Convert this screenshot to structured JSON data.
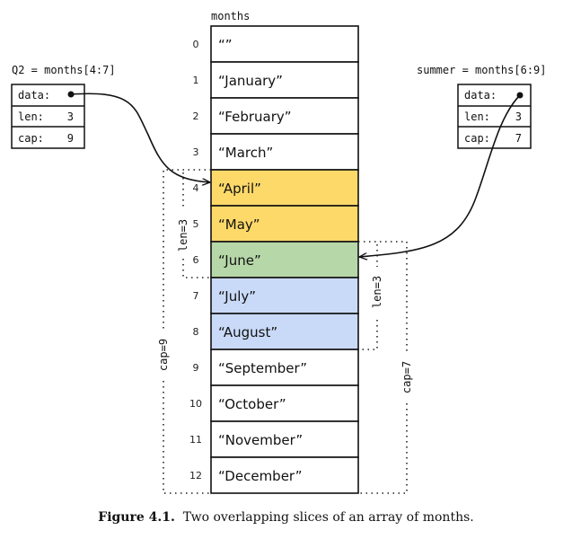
{
  "array": {
    "label": "months",
    "cells": [
      {
        "index": "0",
        "value": "“”",
        "color": "#ffffff"
      },
      {
        "index": "1",
        "value": "“January”",
        "color": "#ffffff"
      },
      {
        "index": "2",
        "value": "“February”",
        "color": "#ffffff"
      },
      {
        "index": "3",
        "value": "“March”",
        "color": "#ffffff"
      },
      {
        "index": "4",
        "value": "“April”",
        "color": "#fdd96a"
      },
      {
        "index": "5",
        "value": "“May”",
        "color": "#fdd96a"
      },
      {
        "index": "6",
        "value": "“June”",
        "color": "#b6d7a8"
      },
      {
        "index": "7",
        "value": "“July”",
        "color": "#c9daf8"
      },
      {
        "index": "8",
        "value": "“August”",
        "color": "#c9daf8"
      },
      {
        "index": "9",
        "value": "“September”",
        "color": "#ffffff"
      },
      {
        "index": "10",
        "value": "“October”",
        "color": "#ffffff"
      },
      {
        "index": "11",
        "value": "“November”",
        "color": "#ffffff"
      },
      {
        "index": "12",
        "value": "“December”",
        "color": "#ffffff"
      }
    ]
  },
  "q2": {
    "title": "Q2 = months[4:7]",
    "data_label": "data:",
    "len_label": "len:",
    "len": "3",
    "cap_label": "cap:",
    "cap": "9",
    "len_annot": "len=3",
    "cap_annot": "cap=9"
  },
  "summer": {
    "title": "summer = months[6:9]",
    "data_label": "data:",
    "len_label": "len:",
    "len": "3",
    "cap_label": "cap:",
    "cap": "7",
    "len_annot": "len=3",
    "cap_annot": "cap=7"
  },
  "caption": {
    "label": "Figure 4.1.",
    "text": "Two overlapping slices of an array of months."
  }
}
